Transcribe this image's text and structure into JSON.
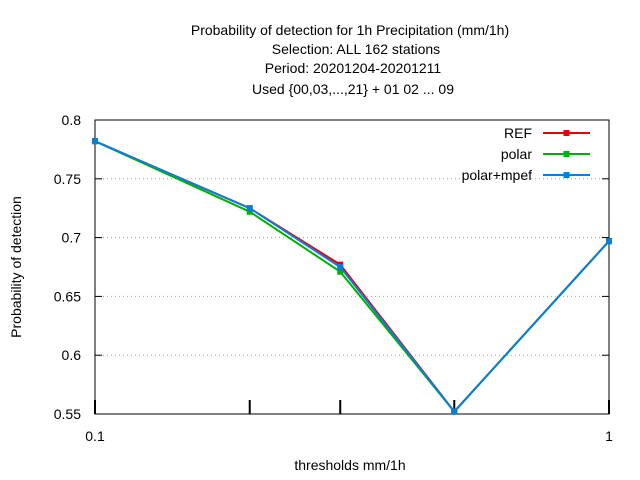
{
  "chart_data": {
    "type": "line",
    "title_lines": [
      "Probability of detection  for 1h Precipitation (mm/1h)",
      "Selection: ALL    162 stations",
      "Period: 20201204-20201211",
      "Used {00,03,...,21} + 01 02 ... 09"
    ],
    "xlabel": "thresholds mm/1h",
    "ylabel": "Probability of detection",
    "x_scale": "log",
    "xlim": [
      0.1,
      1
    ],
    "ylim": [
      0.55,
      0.8
    ],
    "x_tick_labels": [
      "0.1",
      "1"
    ],
    "x_minor_ticks": [
      0.2,
      0.3,
      0.5
    ],
    "y_ticks": [
      0.55,
      0.6,
      0.65,
      0.7,
      0.75,
      0.8
    ],
    "y_tick_labels": [
      "0.55",
      "0.6",
      "0.65",
      "0.7",
      "0.75",
      "0.8"
    ],
    "grid": "horizontal dotted",
    "legend_position": "top-right",
    "x": [
      0.1,
      0.2,
      0.3,
      0.5,
      1
    ],
    "series": [
      {
        "name": "REF",
        "color": "#e8000b",
        "values": [
          0.782,
          0.725,
          0.677,
          0.552,
          0.697
        ]
      },
      {
        "name": "polar",
        "color": "#00b000",
        "values": [
          0.782,
          0.722,
          0.671,
          0.552,
          0.697
        ]
      },
      {
        "name": "polar+mpef",
        "color": "#0a7fd8",
        "values": [
          0.782,
          0.725,
          0.675,
          0.552,
          0.697
        ]
      }
    ]
  }
}
